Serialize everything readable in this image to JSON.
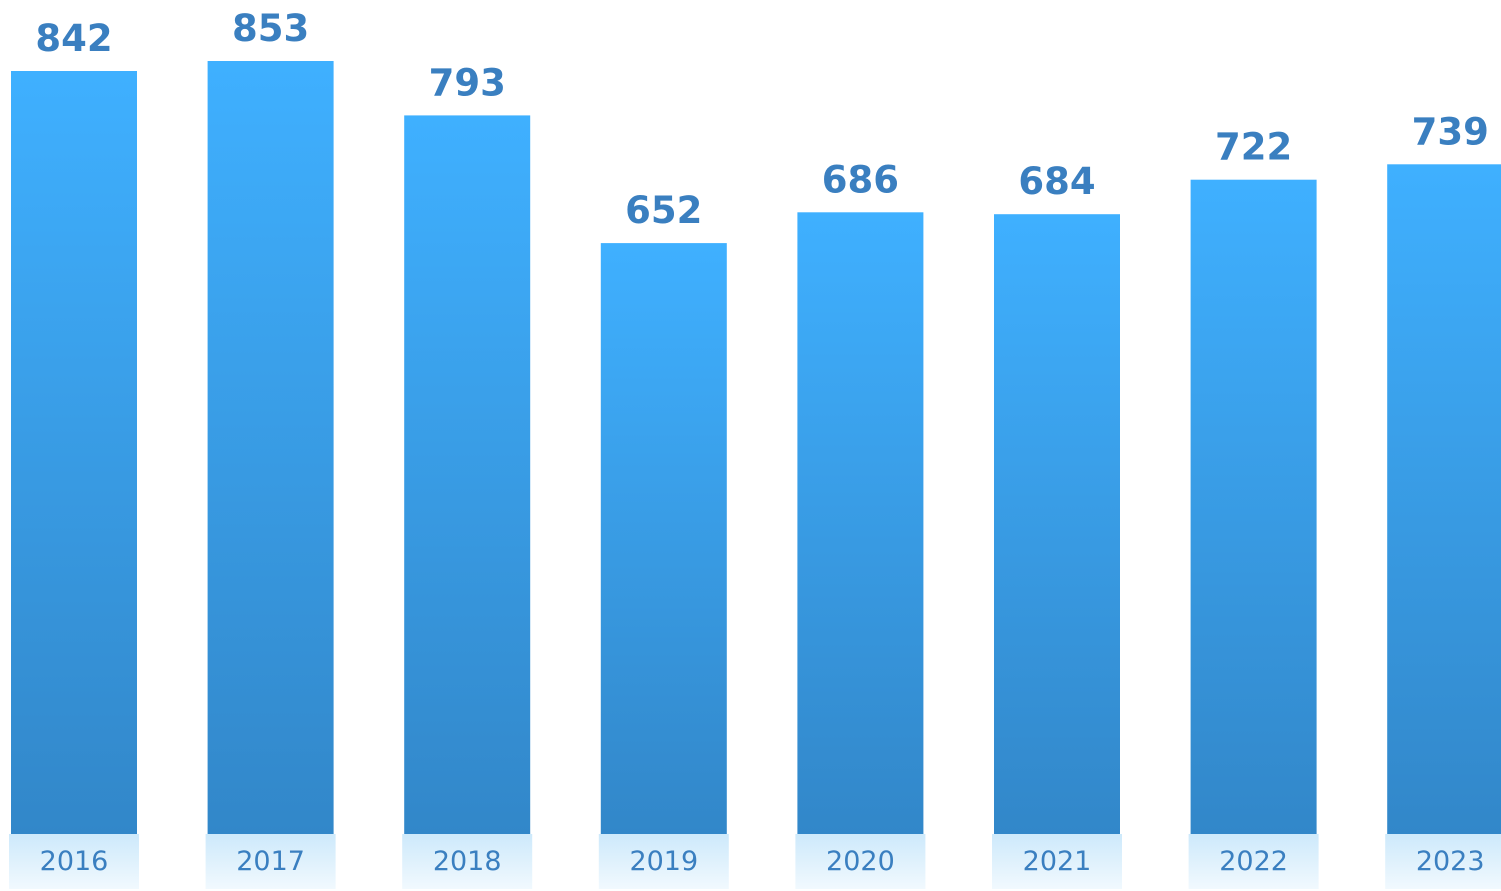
{
  "colors": {
    "bar_top": "#3fb0ff",
    "bar_bottom": "#3287c9",
    "value_label": "#3a7fc0",
    "tick_label": "#3a7fc0",
    "tick_bg_top": "#cde9fb",
    "tick_bg_bottom": "#f1f9fe"
  },
  "chart_data": {
    "type": "bar",
    "categories": [
      "2016",
      "2017",
      "2018",
      "2019",
      "2020",
      "2021",
      "2022",
      "2023"
    ],
    "values": [
      842,
      853,
      793,
      652,
      686,
      684,
      722,
      739
    ],
    "value_labels": [
      "842",
      "853",
      "793",
      "652",
      "686",
      "684",
      "722",
      "739"
    ],
    "title": "",
    "xlabel": "",
    "ylabel": "",
    "ylim": [
      0,
      853
    ],
    "grid": false,
    "legend": "none"
  }
}
